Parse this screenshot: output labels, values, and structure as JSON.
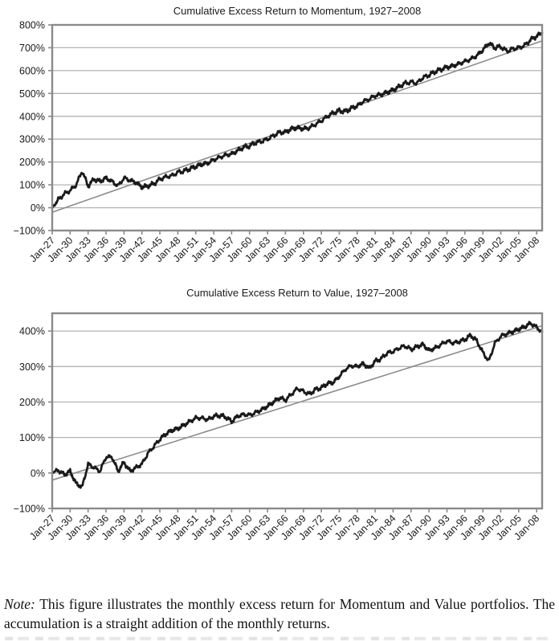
{
  "page": {
    "background": "#ffffff"
  },
  "note": {
    "prefix": "Note:",
    "text": " This figure illustrates the monthly excess return for Momentum and Value portfolios. The accumulation is a straight addition of the monthly returns."
  },
  "chart_data": [
    {
      "type": "line",
      "title": "Cumulative Excess Return to Momentum, 1927–2008",
      "x_unit": "month",
      "x_range": [
        "Jan-1927",
        "Dec-2008"
      ],
      "xtick_labels": [
        "Jan-27",
        "Jan-30",
        "Jan-33",
        "Jan-36",
        "Jan-39",
        "Jan-42",
        "Jan-45",
        "Jan-48",
        "Jan-51",
        "Jan-54",
        "Jan-57",
        "Jan-60",
        "Jan-63",
        "Jan-66",
        "Jan-69",
        "Jan-72",
        "Jan-75",
        "Jan-78",
        "Jan-81",
        "Jan-84",
        "Jan-87",
        "Jan-90",
        "Jan-93",
        "Jan-96",
        "Jan-99",
        "Jan-02",
        "Jan-05",
        "Jan-08"
      ],
      "xtick_interval_months": 36,
      "ytick_values": [
        800,
        700,
        600,
        500,
        400,
        300,
        200,
        100,
        0,
        -100
      ],
      "ytick_labels": [
        "800%",
        "700%",
        "600%",
        "500%",
        "400%",
        "300%",
        "200%",
        "100%",
        "0%",
        "−100%"
      ],
      "ylim": [
        -100,
        800
      ],
      "frame_top_value": 800,
      "grid": "horizontal",
      "legend": "none",
      "colors": {
        "line": "#1a1a1a",
        "trend": "#8c8c8c",
        "grid": "#b3b3b3",
        "frame": "#8a8a8a"
      },
      "series": [
        {
          "name": "Momentum cumulative excess return",
          "color": "#1a1a1a",
          "sampling": "annual_anchors_pct",
          "annual_start_year": 1927,
          "annual_values": [
            0,
            35,
            60,
            75,
            100,
            160,
            95,
            125,
            115,
            130,
            115,
            95,
            130,
            120,
            110,
            90,
            95,
            105,
            125,
            135,
            140,
            155,
            160,
            170,
            180,
            190,
            195,
            210,
            220,
            230,
            235,
            250,
            265,
            270,
            285,
            290,
            300,
            315,
            330,
            330,
            345,
            350,
            345,
            350,
            365,
            380,
            400,
            415,
            425,
            420,
            435,
            445,
            465,
            475,
            490,
            495,
            505,
            515,
            530,
            545,
            550,
            545,
            570,
            580,
            595,
            605,
            615,
            620,
            630,
            640,
            650,
            665,
            690,
            720,
            700,
            705,
            685,
            695,
            700,
            710,
            735,
            750
          ],
          "end_value": 765
        },
        {
          "name": "Linear trend",
          "color": "#8c8c8c",
          "shape": "straight-line",
          "start_value": -20,
          "end_value": 730
        }
      ]
    },
    {
      "type": "line",
      "title": "Cumulative Excess Return to Value, 1927–2008",
      "x_unit": "month",
      "x_range": [
        "Jan-1927",
        "Dec-2008"
      ],
      "xtick_labels": [
        "Jan-27",
        "Jan-30",
        "Jan-33",
        "Jan-36",
        "Jan-39",
        "Jan-42",
        "Jan-45",
        "Jan-48",
        "Jan-51",
        "Jan-54",
        "Jan-57",
        "Jan-60",
        "Jan-63",
        "Jan-66",
        "Jan-69",
        "Jan-72",
        "Jan-75",
        "Jan-78",
        "Jan-81",
        "Jan-84",
        "Jan-87",
        "Jan-90",
        "Jan-93",
        "Jan-96",
        "Jan-99",
        "Jan-02",
        "Jan-05",
        "Jan-08"
      ],
      "xtick_interval_months": 36,
      "ytick_values": [
        400,
        300,
        200,
        100,
        0,
        -100
      ],
      "ytick_labels": [
        "400%",
        "300%",
        "200%",
        "100%",
        "0%",
        "−100%"
      ],
      "ylim": [
        -100,
        450
      ],
      "frame_top_value": 450,
      "grid": "horizontal",
      "legend": "none",
      "colors": {
        "line": "#1a1a1a",
        "trend": "#8c8c8c",
        "grid": "#b3b3b3",
        "frame": "#8a8a8a"
      },
      "series": [
        {
          "name": "Value cumulative excess return",
          "color": "#1a1a1a",
          "sampling": "annual_anchors_pct",
          "annual_start_year": 1927,
          "annual_values": [
            0,
            8,
            -5,
            5,
            -30,
            -40,
            25,
            15,
            5,
            45,
            45,
            5,
            30,
            5,
            15,
            25,
            55,
            75,
            95,
            110,
            120,
            125,
            135,
            145,
            155,
            155,
            150,
            160,
            162,
            158,
            145,
            160,
            165,
            163,
            170,
            178,
            188,
            200,
            212,
            205,
            222,
            238,
            230,
            222,
            235,
            240,
            252,
            255,
            272,
            292,
            302,
            300,
            308,
            295,
            315,
            322,
            338,
            342,
            352,
            358,
            348,
            356,
            362,
            345,
            352,
            362,
            372,
            366,
            370,
            376,
            388,
            372,
            340,
            315,
            365,
            385,
            392,
            398,
            405,
            412,
            422,
            410
          ],
          "end_value": 398
        },
        {
          "name": "Linear trend",
          "color": "#8c8c8c",
          "shape": "straight-line",
          "start_value": -20,
          "end_value": 415
        }
      ]
    }
  ]
}
